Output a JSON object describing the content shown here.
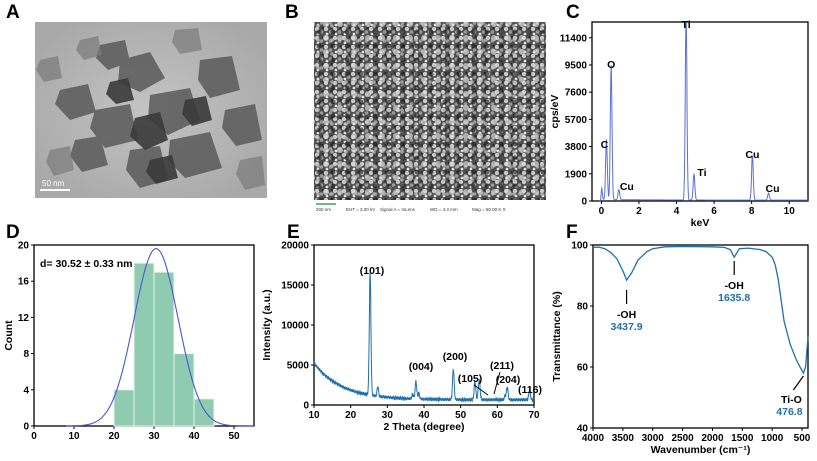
{
  "figure": {
    "panel_letters": [
      "A",
      "B",
      "C",
      "D",
      "E",
      "F"
    ]
  },
  "panel_a": {
    "scale_label": "50 nm"
  },
  "panel_b": {
    "info": [
      "200 nm",
      "EHT = 3.00 kV",
      "Signal A = InLens",
      "WD = 4.4 mm",
      "Mag = 50.00 K X"
    ]
  },
  "colors": {
    "eds_line": "#5b6fd6",
    "hist_bar": "#8fcbb0",
    "hist_bar_edge": "#e8f4ee",
    "fit_line": "#4a55d8",
    "xrd_line": "#1f6fae",
    "ftir_line": "#1f6fae",
    "annotation_blue": "#1f6fae"
  },
  "chart_data": [
    {
      "panel": "C",
      "type": "line",
      "title": "",
      "xlabel": "keV",
      "ylabel": "cps/eV",
      "xlim": [
        -0.5,
        11
      ],
      "ylim": [
        0,
        12500
      ],
      "xticks": [
        0,
        2,
        4,
        6,
        8,
        10
      ],
      "yticks": [
        0,
        1900,
        3800,
        5700,
        7600,
        9500,
        11400
      ],
      "peaks": [
        {
          "x": 0.27,
          "y": 4200,
          "label": "C"
        },
        {
          "x": 0.52,
          "y": 9400,
          "label": "O"
        },
        {
          "x": 0.93,
          "y": 700,
          "label": "Cu"
        },
        {
          "x": 4.51,
          "y": 12700,
          "label": "Ti"
        },
        {
          "x": 4.93,
          "y": 1800,
          "label": "Ti"
        },
        {
          "x": 8.04,
          "y": 3100,
          "label": "Cu"
        },
        {
          "x": 8.9,
          "y": 500,
          "label": "Cu"
        }
      ]
    },
    {
      "panel": "D",
      "type": "bar",
      "title": "",
      "xlabel": "",
      "ylabel": "Count",
      "annotation": "d= 30.52 ± 0.33 nm",
      "xlim": [
        0,
        55
      ],
      "ylim": [
        0,
        20
      ],
      "xticks": [
        0,
        10,
        20,
        30,
        40,
        50
      ],
      "yticks": [
        0,
        4,
        8,
        12,
        16,
        20
      ],
      "bin_width": 5,
      "bins": [
        {
          "x": 22.5,
          "count": 4
        },
        {
          "x": 27.5,
          "count": 18
        },
        {
          "x": 32.5,
          "count": 17
        },
        {
          "x": 37.5,
          "count": 8
        },
        {
          "x": 42.5,
          "count": 3
        }
      ],
      "fit": {
        "type": "gaussian",
        "mean": 30.52,
        "sigma": 5.5,
        "peak": 19.6
      }
    },
    {
      "panel": "E",
      "type": "line",
      "title": "",
      "xlabel": "2 Theta (degree)",
      "ylabel": "Intensity (a.u.)",
      "xlim": [
        10,
        70
      ],
      "ylim": [
        0,
        20000
      ],
      "xticks": [
        10,
        20,
        30,
        40,
        50,
        60,
        70
      ],
      "yticks": [
        0,
        5000,
        10000,
        15000,
        20000
      ],
      "peaks": [
        {
          "x": 25.3,
          "y": 16000,
          "label": "(101)"
        },
        {
          "x": 37.8,
          "y": 3000,
          "label": "(004)"
        },
        {
          "x": 48.0,
          "y": 4600,
          "label": "(200)"
        },
        {
          "x": 53.9,
          "y": 3100,
          "label": "(105)"
        },
        {
          "x": 55.1,
          "y": 3000,
          "label": "(211)"
        },
        {
          "x": 62.7,
          "y": 2400,
          "label": "(204)"
        },
        {
          "x": 68.8,
          "y": 1600,
          "label": "(116)"
        }
      ]
    },
    {
      "panel": "F",
      "type": "line",
      "title": "",
      "xlabel": "Wavenumber (cm⁻¹)",
      "ylabel": "Transmittance (%)",
      "xlim": [
        4000,
        400
      ],
      "ylim": [
        40,
        100
      ],
      "xticks": [
        4000,
        3500,
        3000,
        2500,
        2000,
        1500,
        1000,
        500
      ],
      "yticks": [
        40,
        60,
        80,
        100
      ],
      "x": [
        4000,
        3900,
        3800,
        3700,
        3600,
        3500,
        3437.9,
        3350,
        3250,
        3100,
        3000,
        2800,
        2500,
        2000,
        1800,
        1700,
        1635.8,
        1550,
        1400,
        1200,
        1100,
        1000,
        950,
        900,
        850,
        800,
        700,
        600,
        520,
        476.8,
        440,
        420,
        400
      ],
      "y": [
        99.2,
        99.3,
        98.8,
        97.5,
        95.5,
        91.5,
        88.5,
        91.0,
        95.0,
        97.8,
        98.8,
        99.4,
        99.5,
        99.4,
        99.2,
        98.5,
        96.0,
        98.8,
        99.0,
        98.5,
        97.8,
        96.0,
        93.5,
        89.0,
        82.0,
        75.0,
        67.5,
        62.5,
        59.5,
        58.0,
        60.0,
        65.0,
        70.0
      ],
      "annotations": [
        {
          "x": 3437.9,
          "name": "-OH",
          "value": "3437.9"
        },
        {
          "x": 1635.8,
          "name": "-OH",
          "value": "1635.8"
        },
        {
          "x": 476.8,
          "name": "Ti-O",
          "value": "476.8"
        }
      ]
    }
  ]
}
